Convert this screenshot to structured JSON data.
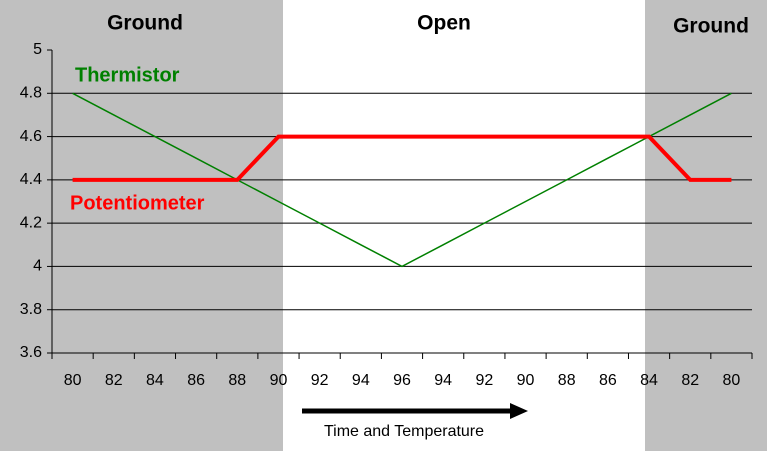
{
  "chart_data": {
    "type": "line",
    "regions": [
      "Ground",
      "Open",
      "Ground"
    ],
    "x_label": "Time and Temperature",
    "categories": [
      "80",
      "82",
      "84",
      "86",
      "88",
      "90",
      "92",
      "94",
      "96",
      "94",
      "92",
      "90",
      "88",
      "86",
      "84",
      "82",
      "80"
    ],
    "series": [
      {
        "name": "Thermistor",
        "color": "#008000",
        "values": [
          4.8,
          4.7,
          4.6,
          4.5,
          4.4,
          4.3,
          4.2,
          4.1,
          4.0,
          4.1,
          4.2,
          4.3,
          4.4,
          4.5,
          4.6,
          4.7,
          4.8
        ]
      },
      {
        "name": "Potentiometer",
        "color": "#ff0000",
        "values": [
          4.4,
          4.4,
          4.4,
          4.4,
          4.4,
          4.6,
          4.6,
          4.6,
          4.6,
          4.6,
          4.6,
          4.6,
          4.6,
          4.6,
          4.6,
          4.4,
          4.4
        ]
      }
    ],
    "ylim": [
      3.6,
      5
    ],
    "yticks": [
      3.6,
      3.8,
      4,
      4.2,
      4.4,
      4.6,
      4.8,
      5
    ],
    "grid": true
  }
}
